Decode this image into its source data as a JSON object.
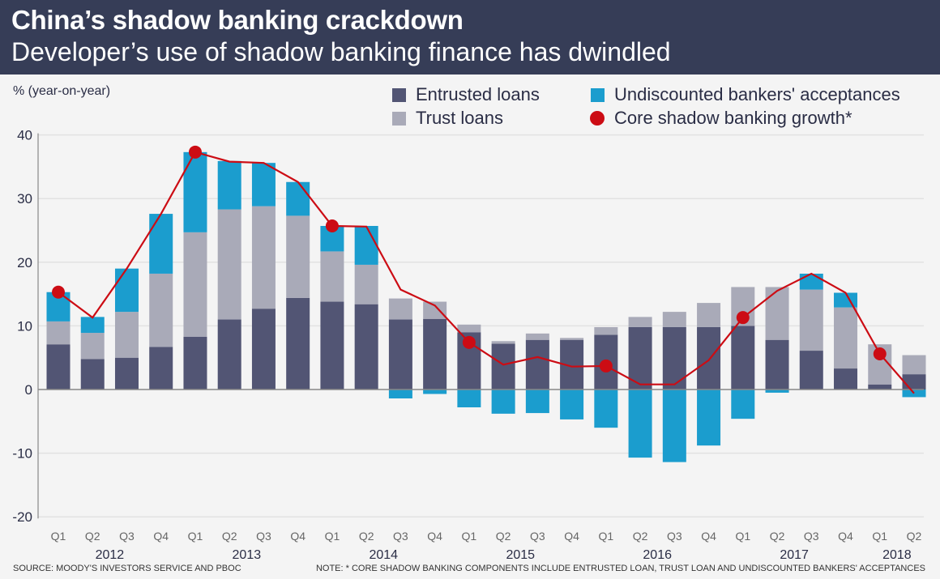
{
  "header": {
    "title": "China’s shadow banking crackdown",
    "subtitle": "Developer’s use of shadow banking finance has dwindled"
  },
  "footer": {
    "source": "SOURCE: MOODY'S INVESTORS SERVICE AND PBOC",
    "note": "NOTE: * CORE SHADOW BANKING COMPONENTS INCLUDE ENTRUSTED LOAN, TRUST LOAN AND UNDISCOUNTED BANKERS' ACCEPTANCES"
  },
  "colors": {
    "header": "#363d57",
    "entrusted": "#525574",
    "trust": "#a9aab8",
    "undiscounted": "#1b9dce",
    "core": "#cc0c14",
    "grid": "#e2e2e2",
    "text": "#2a2d45"
  },
  "chart_data": {
    "type": "bar",
    "stacked": true,
    "title": "China’s shadow banking crackdown",
    "ylabel": "% (year-on-year)",
    "xlabel": "",
    "ylim": [
      -20,
      40
    ],
    "yticks": [
      40,
      30,
      20,
      10,
      0,
      -10,
      -20
    ],
    "grid": true,
    "legend_position": "top-right",
    "categories": [
      "Q1",
      "Q2",
      "Q3",
      "Q4",
      "Q1",
      "Q2",
      "Q3",
      "Q4",
      "Q1",
      "Q2",
      "Q3",
      "Q4",
      "Q1",
      "Q2",
      "Q3",
      "Q4",
      "Q1",
      "Q2",
      "Q3",
      "Q4",
      "Q1",
      "Q2",
      "Q3",
      "Q4",
      "Q1",
      "Q2"
    ],
    "years": [
      "2012",
      "2013",
      "2014",
      "2015",
      "2016",
      "2017",
      "2018"
    ],
    "series": [
      {
        "name": "Entrusted loans",
        "type": "bar",
        "values": [
          7.1,
          4.8,
          5.0,
          6.7,
          8.3,
          11.0,
          12.7,
          14.4,
          13.8,
          13.4,
          11.0,
          11.1,
          9.0,
          7.2,
          7.8,
          7.8,
          8.6,
          9.8,
          9.8,
          9.8,
          10.0,
          7.8,
          6.1,
          3.3,
          0.8,
          2.4
        ]
      },
      {
        "name": "Trust loans",
        "type": "bar",
        "values": [
          3.6,
          4.1,
          7.2,
          11.5,
          16.4,
          17.3,
          16.1,
          12.9,
          7.9,
          6.2,
          3.3,
          2.7,
          1.2,
          0.4,
          1.0,
          0.3,
          1.2,
          1.6,
          2.4,
          3.8,
          6.1,
          8.3,
          9.6,
          9.6,
          6.3,
          3.0
        ]
      },
      {
        "name": "Undiscounted bankers' acceptances",
        "type": "bar",
        "values": [
          4.6,
          2.5,
          6.8,
          9.4,
          12.6,
          7.6,
          6.8,
          5.3,
          4.0,
          6.1,
          -1.4,
          -0.7,
          -2.8,
          -3.8,
          -3.7,
          -4.7,
          -6.0,
          -10.7,
          -11.4,
          -8.8,
          -4.6,
          -0.5,
          2.5,
          2.3,
          0.0,
          -1.2
        ]
      },
      {
        "name": "Core shadow banking growth*",
        "type": "line",
        "values": [
          15.3,
          11.3,
          19.0,
          27.6,
          37.3,
          35.8,
          35.6,
          32.6,
          25.7,
          25.6,
          15.7,
          13.2,
          7.4,
          3.9,
          5.1,
          3.6,
          3.7,
          0.8,
          0.8,
          4.6,
          11.3,
          15.5,
          18.2,
          15.2,
          5.6,
          -0.6
        ],
        "markers_at": [
          0,
          4,
          8,
          12,
          16,
          20,
          24
        ]
      }
    ]
  }
}
